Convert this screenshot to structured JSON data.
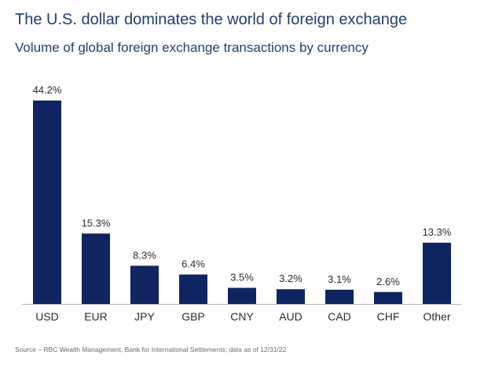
{
  "header": {
    "title": "The U.S. dollar dominates the world of foreign exchange",
    "subtitle": "Volume of global foreign exchange transactions by currency"
  },
  "footer": {
    "source": "Source – RBC Wealth Management, Bank for International Settlements; data as of 12/31/22"
  },
  "colors": {
    "bar": "#0f2461",
    "axis": "#b5b5b5",
    "label": "#2b2b2b"
  },
  "chart_data": {
    "type": "bar",
    "title": "The U.S. dollar dominates the world of foreign exchange",
    "subtitle": "Volume of global foreign exchange transactions by currency",
    "categories": [
      "USD",
      "EUR",
      "JPY",
      "GBP",
      "CNY",
      "AUD",
      "CAD",
      "CHF",
      "Other"
    ],
    "values": [
      44.2,
      15.3,
      8.3,
      6.4,
      3.5,
      3.2,
      3.1,
      2.6,
      13.3
    ],
    "data_labels": [
      "44.2%",
      "15.3%",
      "8.3%",
      "6.4%",
      "3.5%",
      "3.2%",
      "3.1%",
      "2.6%",
      "13.3%"
    ],
    "xlabel": "",
    "ylabel": "",
    "ylim": [
      0,
      44.2
    ],
    "grid": false,
    "legend": "none"
  }
}
